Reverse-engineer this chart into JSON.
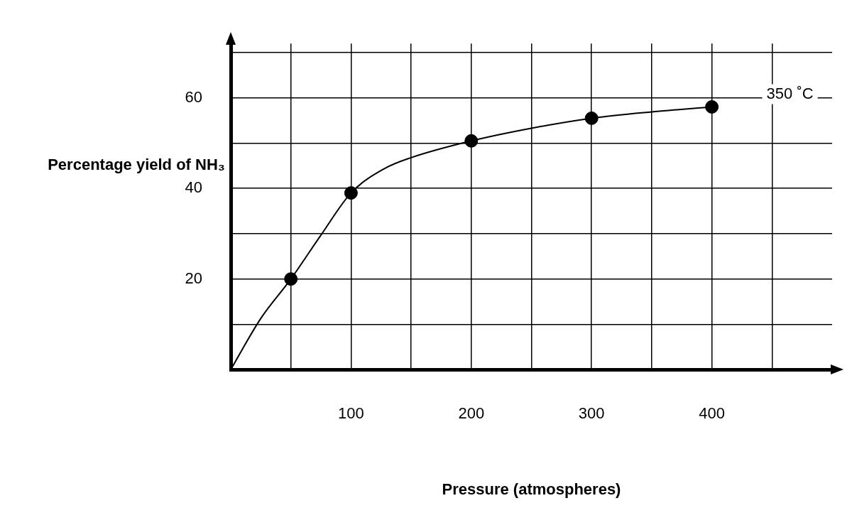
{
  "chart_data": {
    "type": "line",
    "xlabel": "Pressure (atmospheres)",
    "ylabel": "Percentage yield of NH₃",
    "xlim": [
      0,
      500
    ],
    "ylim": [
      0,
      72
    ],
    "xticks": [
      {
        "value": 50,
        "label": null
      },
      100,
      {
        "value": 150,
        "label": null
      },
      200,
      {
        "value": 250,
        "label": null
      },
      300,
      {
        "value": 350,
        "label": null
      },
      400,
      {
        "value": 450,
        "label": null
      }
    ],
    "yticks": [
      {
        "value": 10,
        "label": null
      },
      20,
      {
        "value": 30,
        "label": null
      },
      40,
      {
        "value": 50,
        "label": null
      },
      60,
      {
        "value": 70,
        "label": null
      }
    ],
    "grid": true,
    "legend": false,
    "series": [
      {
        "color": "#000000",
        "marker": "none",
        "x": [
          0,
          25,
          50,
          75,
          100,
          128,
          150,
          200,
          250,
          300,
          350,
          400
        ],
        "values": [
          0,
          11.3,
          20,
          29.7,
          39,
          44.4,
          46.8,
          50.5,
          53.3,
          55.5,
          56.9,
          58
        ]
      },
      {
        "type": "scatter",
        "color": "#000000",
        "marker": "circle",
        "x": [
          50,
          100,
          200,
          300,
          400
        ],
        "values": [
          20,
          39,
          50.5,
          55.5,
          58
        ]
      }
    ],
    "annotations": [
      "350 ˚C"
    ]
  }
}
